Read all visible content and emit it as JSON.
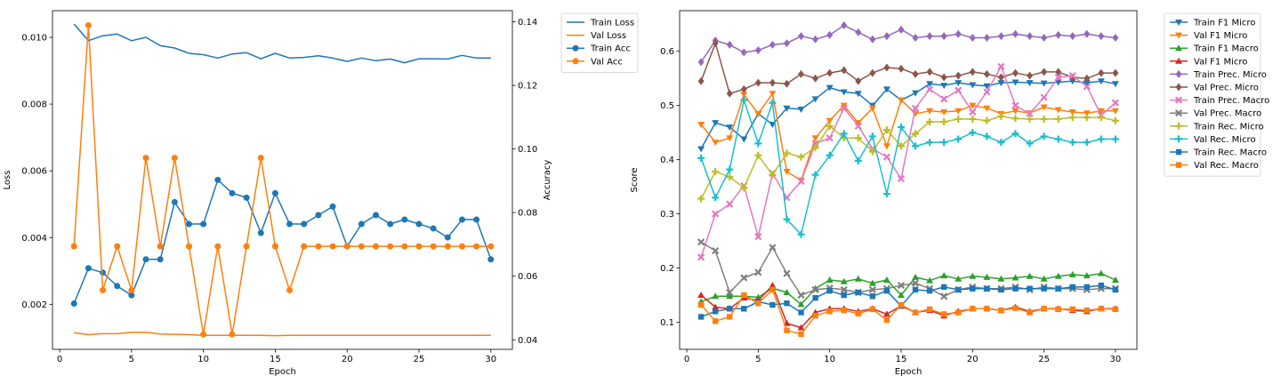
{
  "chart_data": [
    {
      "type": "line",
      "xlabel": "Epoch",
      "ylabel": "Loss",
      "y2label": "Accuracy",
      "xlim": [
        -0.5,
        31.5
      ],
      "ylim": [
        0.00065,
        0.0108
      ],
      "y2lim": [
        0.037,
        0.1435
      ],
      "xticks": [
        0,
        5,
        10,
        15,
        20,
        25,
        30
      ],
      "yticks": [
        0.002,
        0.004,
        0.006,
        0.008,
        0.01
      ],
      "ytick_labels": [
        "0.002",
        "0.004",
        "0.006",
        "0.008",
        "0.010"
      ],
      "y2ticks": [
        0.04,
        0.06,
        0.08,
        0.1,
        0.12,
        0.14
      ],
      "y2tick_labels": [
        "0.04",
        "0.06",
        "0.08",
        "0.10",
        "0.12",
        "0.14"
      ],
      "legend_position": "outside right, top",
      "x": [
        1,
        2,
        3,
        4,
        5,
        6,
        7,
        8,
        9,
        10,
        11,
        12,
        13,
        14,
        15,
        16,
        17,
        18,
        19,
        20,
        21,
        22,
        23,
        24,
        25,
        26,
        27,
        28,
        29,
        30
      ],
      "series": [
        {
          "name": "Train Loss",
          "axis": "left",
          "color": "#1f77b4",
          "marker": "none",
          "values": [
            0.0104,
            0.0099,
            0.01005,
            0.0101,
            0.0099,
            0.01,
            0.00975,
            0.00968,
            0.00952,
            0.00948,
            0.00938,
            0.0095,
            0.00954,
            0.00936,
            0.00952,
            0.00938,
            0.0094,
            0.00945,
            0.00938,
            0.00928,
            0.00938,
            0.0093,
            0.00935,
            0.00924,
            0.00936,
            0.00936,
            0.00935,
            0.00946,
            0.00938,
            0.00938
          ]
        },
        {
          "name": "Val Loss",
          "axis": "left",
          "color": "#ff7f0e",
          "marker": "none",
          "values": [
            0.00115,
            0.00109,
            0.00112,
            0.00112,
            0.00116,
            0.00116,
            0.00111,
            0.0011,
            0.00109,
            0.00107,
            0.00107,
            0.00107,
            0.00107,
            0.00107,
            0.00106,
            0.00107,
            0.00107,
            0.00107,
            0.00107,
            0.00107,
            0.00107,
            0.00107,
            0.00107,
            0.00107,
            0.00107,
            0.00107,
            0.00107,
            0.00107,
            0.00107,
            0.00107
          ]
        },
        {
          "name": "Train Acc",
          "axis": "right",
          "color": "#1f77b4",
          "marker": "circle",
          "values": [
            0.0514,
            0.0625,
            0.0611,
            0.0569,
            0.054,
            0.0653,
            0.0653,
            0.0833,
            0.0764,
            0.0764,
            0.0903,
            0.0861,
            0.0847,
            0.0736,
            0.0861,
            0.0764,
            0.0764,
            0.0792,
            0.0819,
            0.0694,
            0.0764,
            0.0792,
            0.0764,
            0.0778,
            0.0764,
            0.075,
            0.0722,
            0.0778,
            0.0778,
            0.0653
          ]
        },
        {
          "name": "Val Acc",
          "axis": "right",
          "color": "#ff7f0e",
          "marker": "circle",
          "values": [
            0.0694,
            0.1389,
            0.0556,
            0.0694,
            0.0556,
            0.0972,
            0.0694,
            0.0972,
            0.0694,
            0.0417,
            0.0694,
            0.0417,
            0.0694,
            0.0972,
            0.0694,
            0.0556,
            0.0694,
            0.0694,
            0.0694,
            0.0694,
            0.0694,
            0.0694,
            0.0694,
            0.0694,
            0.0694,
            0.0694,
            0.0694,
            0.0694,
            0.0694,
            0.0694
          ]
        }
      ]
    },
    {
      "type": "line",
      "xlabel": "Epoch",
      "ylabel": "Score",
      "xlim": [
        -0.5,
        31.5
      ],
      "ylim": [
        0.05,
        0.675
      ],
      "xticks": [
        0,
        5,
        10,
        15,
        20,
        25,
        30
      ],
      "yticks": [
        0.1,
        0.2,
        0.3,
        0.4,
        0.5,
        0.6
      ],
      "ytick_labels": [
        "0.1",
        "0.2",
        "0.3",
        "0.4",
        "0.5",
        "0.6"
      ],
      "legend_position": "outside right, top",
      "x": [
        1,
        2,
        3,
        4,
        5,
        6,
        7,
        8,
        9,
        10,
        11,
        12,
        13,
        14,
        15,
        16,
        17,
        18,
        19,
        20,
        21,
        22,
        23,
        24,
        25,
        26,
        27,
        28,
        29,
        30
      ],
      "series": [
        {
          "name": "Train F1 Micro",
          "color": "#1f77b4",
          "marker": "triangle-down",
          "values": [
            0.42,
            0.468,
            0.46,
            0.438,
            0.485,
            0.465,
            0.495,
            0.493,
            0.512,
            0.533,
            0.525,
            0.522,
            0.5,
            0.53,
            0.51,
            0.523,
            0.54,
            0.537,
            0.542,
            0.538,
            0.536,
            0.542,
            0.543,
            0.542,
            0.541,
            0.543,
            0.545,
            0.542,
            0.545,
            0.54
          ]
        },
        {
          "name": "Val F1 Micro",
          "color": "#ff7f0e",
          "marker": "triangle-down",
          "values": [
            0.465,
            0.432,
            0.44,
            0.52,
            0.485,
            0.522,
            0.378,
            0.362,
            0.44,
            0.472,
            0.5,
            0.468,
            0.495,
            0.425,
            0.51,
            0.485,
            0.49,
            0.488,
            0.49,
            0.5,
            0.495,
            0.485,
            0.49,
            0.486,
            0.497,
            0.492,
            0.488,
            0.486,
            0.49,
            0.49
          ]
        },
        {
          "name": "Train F1 Macro",
          "color": "#2ca02c",
          "marker": "triangle-up",
          "values": [
            0.138,
            0.148,
            0.148,
            0.148,
            0.146,
            0.163,
            0.155,
            0.133,
            0.162,
            0.178,
            0.175,
            0.18,
            0.172,
            0.178,
            0.15,
            0.183,
            0.177,
            0.186,
            0.18,
            0.185,
            0.183,
            0.18,
            0.182,
            0.185,
            0.18,
            0.185,
            0.188,
            0.186,
            0.19,
            0.178
          ]
        },
        {
          "name": "Val F1 Micro",
          "color": "#d62728",
          "marker": "triangle-up",
          "values": [
            0.15,
            0.128,
            0.125,
            0.145,
            0.14,
            0.168,
            0.098,
            0.09,
            0.118,
            0.125,
            0.125,
            0.12,
            0.125,
            0.115,
            0.13,
            0.118,
            0.122,
            0.112,
            0.12,
            0.125,
            0.125,
            0.122,
            0.128,
            0.12,
            0.125,
            0.125,
            0.122,
            0.12,
            0.125,
            0.125
          ]
        },
        {
          "name": "Train Prec. Micro",
          "color": "#9467bd",
          "marker": "diamond",
          "values": [
            0.58,
            0.62,
            0.612,
            0.598,
            0.602,
            0.612,
            0.615,
            0.628,
            0.622,
            0.63,
            0.648,
            0.635,
            0.622,
            0.628,
            0.64,
            0.625,
            0.628,
            0.628,
            0.632,
            0.625,
            0.625,
            0.628,
            0.632,
            0.628,
            0.625,
            0.63,
            0.628,
            0.632,
            0.628,
            0.625
          ]
        },
        {
          "name": "Val Prec. Micro",
          "color": "#8c564b",
          "marker": "diamond",
          "values": [
            0.545,
            0.615,
            0.522,
            0.53,
            0.542,
            0.542,
            0.54,
            0.558,
            0.55,
            0.56,
            0.565,
            0.545,
            0.56,
            0.57,
            0.568,
            0.558,
            0.562,
            0.552,
            0.555,
            0.562,
            0.558,
            0.552,
            0.56,
            0.555,
            0.562,
            0.562,
            0.552,
            0.55,
            0.56,
            0.56
          ]
        },
        {
          "name": "Train Prec. Macro",
          "color": "#e377c2",
          "marker": "x",
          "values": [
            0.22,
            0.3,
            0.318,
            0.352,
            0.258,
            0.375,
            0.33,
            0.36,
            0.43,
            0.44,
            0.495,
            0.462,
            0.42,
            0.405,
            0.365,
            0.495,
            0.53,
            0.512,
            0.528,
            0.488,
            0.525,
            0.572,
            0.5,
            0.485,
            0.515,
            0.552,
            0.555,
            0.535,
            0.482,
            0.505
          ]
        },
        {
          "name": "Val Prec. Macro",
          "color": "#7f7f7f",
          "marker": "x",
          "values": [
            0.248,
            0.232,
            0.155,
            0.182,
            0.192,
            0.238,
            0.19,
            0.15,
            0.16,
            0.163,
            0.16,
            0.155,
            0.16,
            0.162,
            0.168,
            0.172,
            0.162,
            0.148,
            0.16,
            0.165,
            0.162,
            0.162,
            0.165,
            0.16,
            0.165,
            0.162,
            0.162,
            0.16,
            0.162,
            0.162
          ]
        },
        {
          "name": "Train Rec. Micro",
          "color": "#bcbd22",
          "marker": "plus",
          "values": [
            0.328,
            0.378,
            0.368,
            0.348,
            0.408,
            0.372,
            0.412,
            0.405,
            0.422,
            0.462,
            0.44,
            0.44,
            0.415,
            0.455,
            0.425,
            0.448,
            0.47,
            0.47,
            0.475,
            0.475,
            0.472,
            0.48,
            0.476,
            0.475,
            0.475,
            0.475,
            0.478,
            0.478,
            0.478,
            0.472
          ]
        },
        {
          "name": "Val Rec. Micro",
          "color": "#17becf",
          "marker": "plus",
          "values": [
            0.403,
            0.33,
            0.382,
            0.51,
            0.43,
            0.505,
            0.29,
            0.262,
            0.372,
            0.408,
            0.448,
            0.398,
            0.443,
            0.337,
            0.46,
            0.425,
            0.432,
            0.432,
            0.438,
            0.45,
            0.443,
            0.432,
            0.448,
            0.43,
            0.443,
            0.438,
            0.432,
            0.432,
            0.438,
            0.438
          ]
        },
        {
          "name": "Train Rec. Macro",
          "color": "#1f77b4",
          "marker": "square",
          "values": [
            0.11,
            0.12,
            0.125,
            0.125,
            0.138,
            0.132,
            0.135,
            0.118,
            0.145,
            0.158,
            0.15,
            0.155,
            0.148,
            0.158,
            0.13,
            0.16,
            0.158,
            0.165,
            0.16,
            0.162,
            0.162,
            0.16,
            0.162,
            0.162,
            0.162,
            0.162,
            0.165,
            0.165,
            0.168,
            0.16
          ]
        },
        {
          "name": "Val Rec. Macro",
          "color": "#ff7f0e",
          "marker": "square",
          "values": [
            0.132,
            0.102,
            0.11,
            0.15,
            0.135,
            0.16,
            0.085,
            0.078,
            0.112,
            0.12,
            0.122,
            0.116,
            0.124,
            0.104,
            0.132,
            0.118,
            0.124,
            0.115,
            0.118,
            0.125,
            0.125,
            0.122,
            0.126,
            0.118,
            0.125,
            0.124,
            0.124,
            0.122,
            0.125,
            0.124
          ]
        }
      ]
    }
  ]
}
